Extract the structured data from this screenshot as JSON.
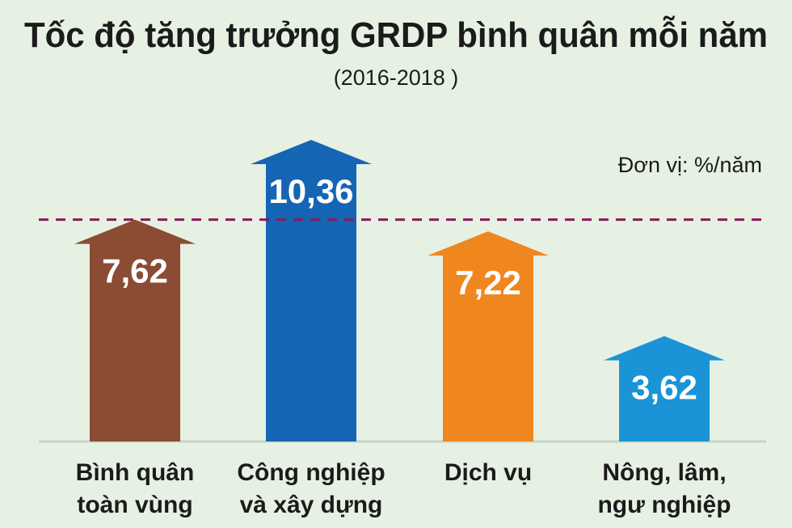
{
  "chart_data": {
    "type": "bar",
    "title": "Tốc độ tăng trưởng GRDP bình quân mỗi năm",
    "subtitle": "(2016-2018 )",
    "unit_label": "Đơn vị: %/năm",
    "categories": [
      [
        "Bình quân",
        "toàn vùng"
      ],
      [
        "Công nghiệp",
        "và xây dựng"
      ],
      [
        "Dịch vụ"
      ],
      [
        "Nông, lâm,",
        "ngư nghiệp"
      ]
    ],
    "values": [
      7.62,
      10.36,
      7.22,
      3.62
    ],
    "value_labels": [
      "7,62",
      "10,36",
      "7,22",
      "3,62"
    ],
    "colors": [
      "#8a4c33",
      "#1565b5",
      "#f0861e",
      "#1a94d6"
    ],
    "reference_line": {
      "value": 7.62,
      "style": "dashed",
      "color": "#8b1a58"
    },
    "ylim": [
      0,
      12
    ]
  }
}
